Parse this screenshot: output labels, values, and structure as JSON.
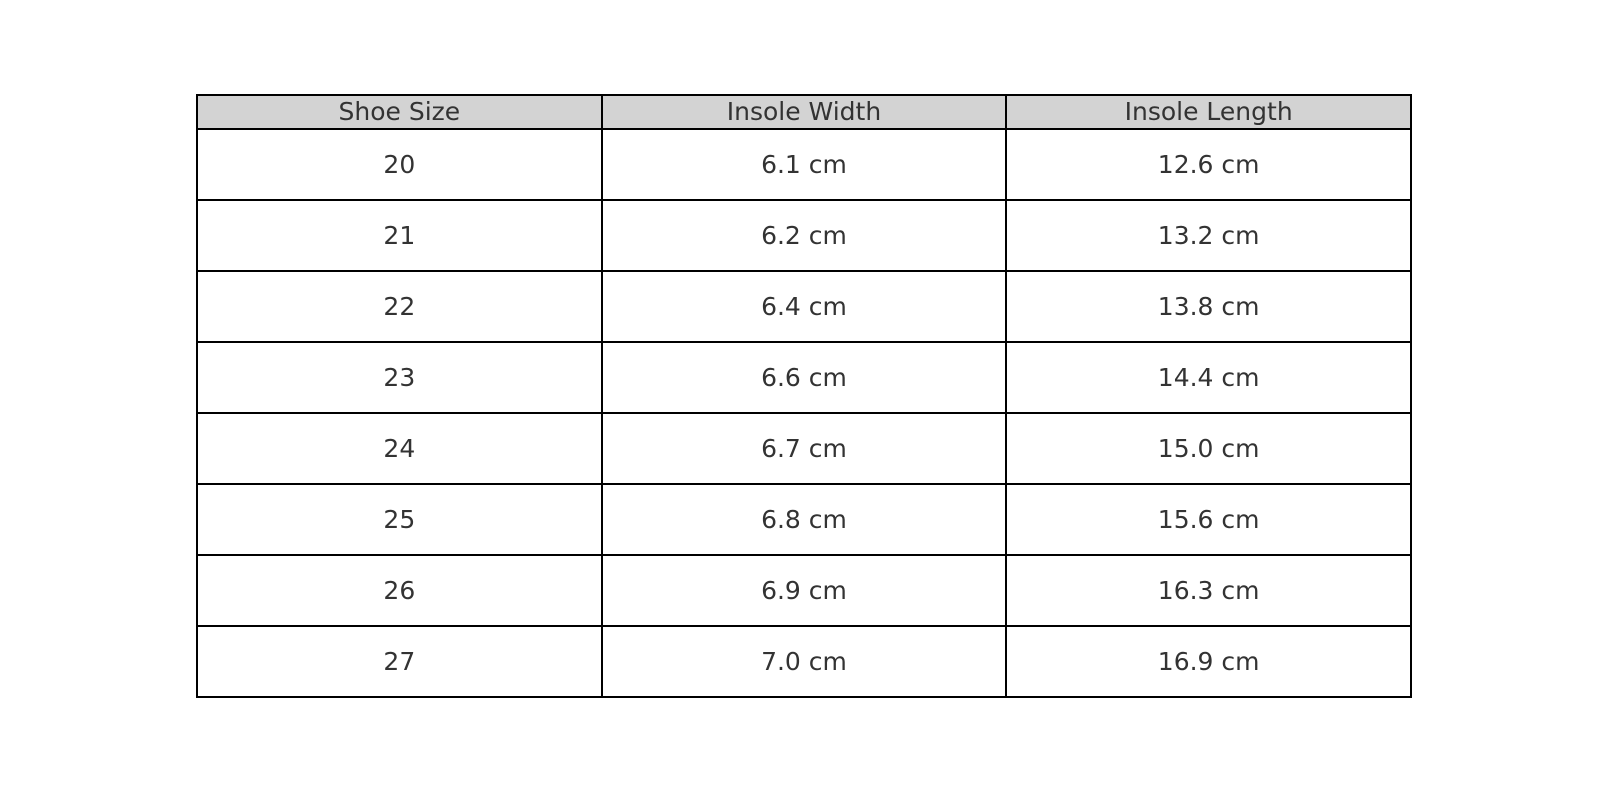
{
  "table": {
    "headers": [
      "Shoe Size",
      "Insole Width",
      "Insole Length"
    ],
    "rows": [
      [
        "20",
        "6.1 cm",
        "12.6 cm"
      ],
      [
        "21",
        "6.2 cm",
        "13.2 cm"
      ],
      [
        "22",
        "6.4 cm",
        "13.8 cm"
      ],
      [
        "23",
        "6.6 cm",
        "14.4 cm"
      ],
      [
        "24",
        "6.7 cm",
        "15.0 cm"
      ],
      [
        "25",
        "6.8 cm",
        "15.6 cm"
      ],
      [
        "26",
        "6.9 cm",
        "16.3 cm"
      ],
      [
        "27",
        "7.0 cm",
        "16.9 cm"
      ]
    ],
    "header_bg": "#d3d3d3"
  }
}
